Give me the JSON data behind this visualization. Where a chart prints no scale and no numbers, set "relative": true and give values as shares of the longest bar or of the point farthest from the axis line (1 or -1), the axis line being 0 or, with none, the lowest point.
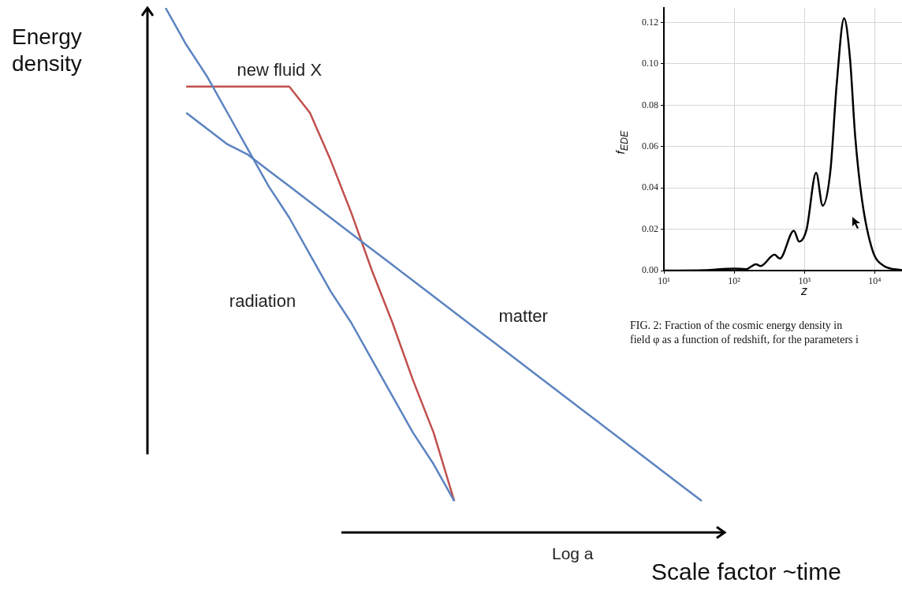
{
  "chart_data": [
    {
      "type": "line",
      "relative": true,
      "ylabel": "Energy density",
      "xlabel": "Log a",
      "annotations": [
        "Scale factor ~time"
      ],
      "marker": "none",
      "grid": false,
      "categories": [
        null,
        null,
        null,
        null,
        null,
        null,
        null,
        null,
        null,
        null,
        null,
        null,
        null,
        null,
        null,
        null,
        null,
        null,
        null,
        null,
        null,
        null,
        null,
        null,
        null,
        null,
        null
      ],
      "series": [
        {
          "name": "radiation",
          "color": "#5b83c0",
          "values": [
            1,
            0.93,
            0.87,
            0.8,
            0.73,
            0.66,
            0.6,
            0.53,
            0.46,
            0.4,
            0.33,
            0.26,
            0.19,
            0.13,
            0.06,
            null,
            null,
            null,
            null,
            null,
            null,
            null,
            null,
            null,
            null,
            null,
            null
          ]
        },
        {
          "name": "matter",
          "color": "#5b83c0",
          "values": [
            null,
            0.8,
            0.77,
            0.74,
            0.72,
            0.69,
            0.66,
            0.63,
            0.6,
            0.57,
            0.54,
            0.51,
            0.48,
            0.45,
            0.42,
            0.39,
            0.36,
            0.33,
            0.3,
            0.27,
            0.24,
            0.21,
            0.18,
            0.15,
            0.12,
            0.09,
            0.06
          ]
        },
        {
          "name": "new fluid X",
          "color": "#c0504d",
          "values": [
            null,
            0.85,
            0.85,
            0.85,
            0.85,
            0.85,
            0.85,
            0.8,
            0.71,
            0.61,
            0.5,
            0.4,
            0.29,
            0.19,
            0.06,
            null,
            null,
            null,
            null,
            null,
            null,
            null,
            null,
            null,
            null,
            null,
            null
          ]
        }
      ]
    },
    {
      "type": "line",
      "xlabel": "z",
      "ylabel": "f$_{EDE}$",
      "log": "x",
      "grid": true,
      "marker": "none",
      "color": "#000000",
      "annotations": [
        "FIG. 2: Fraction of the cosmic energy density in",
        "field φ as a function of redshift, for the parameters i"
      ],
      "xlim": [
        10,
        24500
      ],
      "ylim": [
        0,
        0.127
      ],
      "xticks": [
        {
          "value": 10,
          "label": "10¹"
        },
        {
          "value": 100,
          "label": "10²"
        },
        {
          "value": 1000,
          "label": "10³"
        },
        {
          "value": 10000,
          "label": "10⁴"
        }
      ],
      "yticks": [
        {
          "value": 0,
          "label": "0.00"
        },
        {
          "value": 0.02,
          "label": "0.02"
        },
        {
          "value": 0.04,
          "label": "0.04"
        },
        {
          "value": 0.06,
          "label": "0.06"
        },
        {
          "value": 0.08,
          "label": "0.08"
        },
        {
          "value": 0.1,
          "label": "0.10"
        },
        {
          "value": 0.12,
          "label": "0.12"
        }
      ],
      "x": [
        10,
        37,
        100,
        148,
        204,
        238,
        376,
        447,
        708,
        841,
        1072,
        1469,
        1820,
        2340,
        2880,
        3670,
        4460,
        5270,
        6580,
        9300,
        13200,
        24500
      ],
      "values": [
        0,
        0.0002,
        0.001,
        0.0007,
        0.0031,
        0.0022,
        0.0077,
        0.0058,
        0.0193,
        0.014,
        0.0198,
        0.0473,
        0.0314,
        0.048,
        0.09,
        0.122,
        0.1025,
        0.0654,
        0.0346,
        0.0099,
        0.0025,
        0.0002
      ]
    }
  ]
}
